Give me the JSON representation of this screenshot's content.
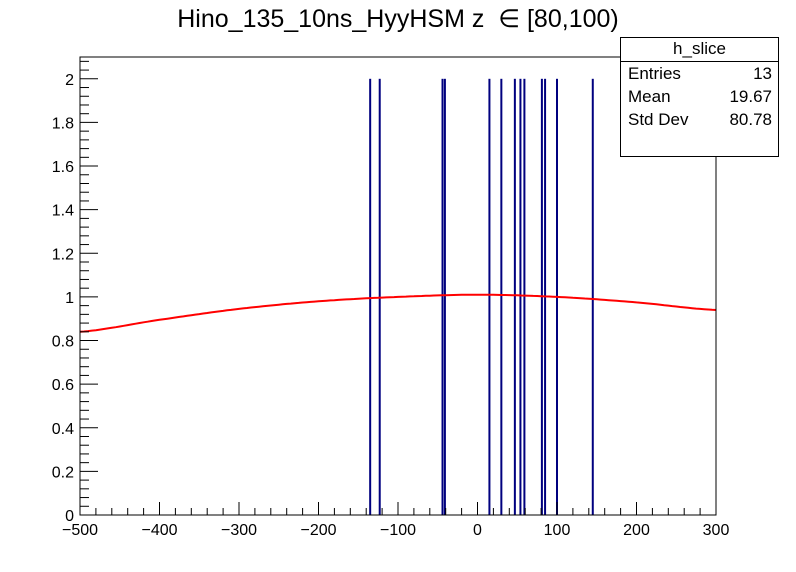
{
  "title_main": "Hino_135_10ns_HyyHSM z",
  "title_range": "∈ [80,100)",
  "stats": {
    "name": "h_slice",
    "rows": [
      {
        "label": "Entries",
        "value": "13"
      },
      {
        "label": "Mean",
        "value": "19.67"
      },
      {
        "label": "Std Dev",
        "value": "80.78"
      }
    ]
  },
  "chart_data": {
    "type": "bar",
    "xlim": [
      -500,
      300
    ],
    "ylim": [
      0,
      2.1
    ],
    "x_ticks": [
      -500,
      -400,
      -300,
      -200,
      -100,
      0,
      100,
      200,
      300
    ],
    "x_tick_labels": [
      "−500",
      "−400",
      "−300",
      "−200",
      "−100",
      "0",
      "100",
      "200",
      "300"
    ],
    "y_ticks": [
      0,
      0.2,
      0.4,
      0.6,
      0.8,
      1,
      1.2,
      1.4,
      1.6,
      1.8,
      2
    ],
    "y_tick_labels": [
      "0",
      "0.2",
      "0.4",
      "0.6",
      "0.8",
      "1",
      "1.2",
      "1.4",
      "1.6",
      "1.8",
      "2"
    ],
    "grid": false,
    "histogram": {
      "color": "#00007f",
      "spikes": [
        {
          "x": -135,
          "value": 2
        },
        {
          "x": -123,
          "value": 2
        },
        {
          "x": -44,
          "value": 2
        },
        {
          "x": -41,
          "value": 2
        },
        {
          "x": 15,
          "value": 2
        },
        {
          "x": 30,
          "value": 2
        },
        {
          "x": 47,
          "value": 2
        },
        {
          "x": 54,
          "value": 2
        },
        {
          "x": 59,
          "value": 2
        },
        {
          "x": 81,
          "value": 2
        },
        {
          "x": 85,
          "value": 2
        },
        {
          "x": 100,
          "value": 2
        },
        {
          "x": 145,
          "value": 2
        }
      ]
    },
    "fit": {
      "color": "#ff0000",
      "x": [
        -500,
        -400,
        -300,
        -200,
        -100,
        0,
        100,
        200,
        300
      ],
      "y": [
        0.84,
        0.895,
        0.945,
        0.98,
        1.0,
        1.01,
        1.0,
        0.975,
        0.94
      ]
    }
  }
}
